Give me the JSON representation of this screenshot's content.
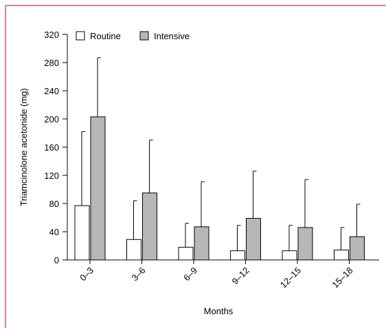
{
  "colors": {
    "frame": "#b0004f",
    "routine_fill": "#ffffff",
    "intensive_fill": "#b7b7b7",
    "stroke": "#000000"
  },
  "chart_data": {
    "type": "bar",
    "xlabel": "Months",
    "ylabel": "Triamcinolone acetonide  (mg)",
    "ylim": [
      0,
      320
    ],
    "yticks": [
      0,
      40,
      80,
      120,
      160,
      200,
      240,
      280,
      320
    ],
    "categories": [
      "0–3",
      "3–6",
      "6–9",
      "9–12",
      "12–15",
      "15–18"
    ],
    "legend_position": "top-left",
    "error_bars": "upper only",
    "series": [
      {
        "name": "Routine",
        "fill": "#ffffff",
        "values": [
          77,
          29,
          18,
          13,
          13,
          14
        ],
        "error_upper": [
          182,
          84,
          52,
          49,
          49,
          46
        ]
      },
      {
        "name": "Intensive",
        "fill": "#b7b7b7",
        "values": [
          203,
          95,
          47,
          59,
          46,
          33
        ],
        "error_upper": [
          287,
          170,
          111,
          126,
          114,
          79
        ]
      }
    ]
  }
}
